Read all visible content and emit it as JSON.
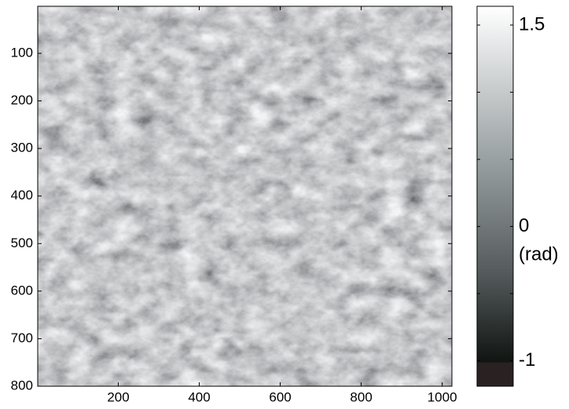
{
  "chart_data": {
    "type": "heatmap",
    "xlim": [
      1,
      1024
    ],
    "xticks": [
      200,
      400,
      600,
      800,
      1000
    ],
    "ylim": [
      1,
      800
    ],
    "yticks": [
      100,
      200,
      300,
      400,
      500,
      600,
      700,
      800
    ],
    "y_reversed": true,
    "clim": [
      -1.19,
      1.64
    ],
    "cticks": [
      -1,
      -0.5,
      0,
      0.5,
      1,
      1.5
    ],
    "clabels": [
      -1,
      0,
      1.5
    ],
    "clabel": "(rad)"
  }
}
